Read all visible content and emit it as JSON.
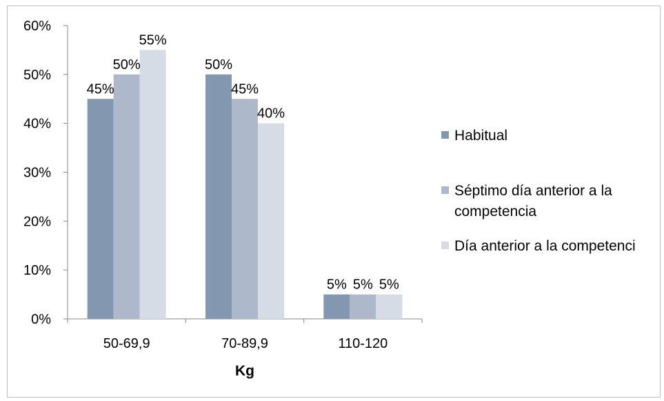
{
  "chart_data": {
    "type": "bar",
    "categories": [
      "50-69,9",
      "70-89,9",
      "110-120"
    ],
    "series": [
      {
        "name": "Habitual",
        "values": [
          45,
          50,
          5
        ],
        "color": "#8497b0"
      },
      {
        "name": "Séptimo día anterior a la competencia",
        "values": [
          50,
          45,
          5
        ],
        "color": "#adb9ca"
      },
      {
        "name": "Día anterior a la competenci",
        "values": [
          55,
          40,
          5
        ],
        "color": "#d6dce5"
      }
    ],
    "value_labels": [
      [
        "45%",
        "50%",
        "5%"
      ],
      [
        "50%",
        "45%",
        "5%"
      ],
      [
        "55%",
        "40%",
        "5%"
      ]
    ],
    "title": "",
    "xlabel": "Kg",
    "ylabel": "",
    "ylim": [
      0,
      60
    ],
    "y_ticks": [
      "0%",
      "10%",
      "20%",
      "30%",
      "40%",
      "50%",
      "60%"
    ],
    "grid": false,
    "legend_position": "right"
  }
}
